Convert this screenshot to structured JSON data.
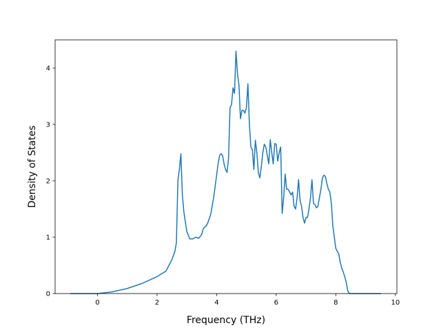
{
  "chart_data": {
    "type": "line",
    "title": "",
    "xlabel": "Frequency (THz)",
    "ylabel": "Density of States",
    "xlim": [
      -1.42,
      10.05
    ],
    "ylim": [
      0,
      4.5
    ],
    "grid": false,
    "legend": "none",
    "xticks": [
      0,
      2,
      4,
      6,
      8,
      10
    ],
    "xtick_labels": [
      "0",
      "2",
      "4",
      "6",
      "8",
      "10"
    ],
    "yticks": [
      0,
      1,
      2,
      3,
      4
    ],
    "ytick_labels": [
      "0",
      "1",
      "2",
      "3",
      "4"
    ],
    "series": [
      {
        "color": "#1f77b4",
        "x": [
          -0.9,
          -0.5,
          0.0,
          0.5,
          1.0,
          1.5,
          2.0,
          2.3,
          2.5,
          2.6,
          2.65,
          2.7,
          2.75,
          2.8,
          2.85,
          2.9,
          3.0,
          3.1,
          3.2,
          3.3,
          3.4,
          3.5,
          3.55,
          3.6,
          3.65,
          3.7,
          3.8,
          3.9,
          4.0,
          4.05,
          4.1,
          4.15,
          4.2,
          4.25,
          4.3,
          4.35,
          4.4,
          4.45,
          4.5,
          4.55,
          4.6,
          4.65,
          4.7,
          4.75,
          4.8,
          4.85,
          4.9,
          4.95,
          5.0,
          5.05,
          5.1,
          5.15,
          5.2,
          5.25,
          5.3,
          5.35,
          5.4,
          5.45,
          5.5,
          5.55,
          5.6,
          5.65,
          5.7,
          5.75,
          5.8,
          5.85,
          5.9,
          5.95,
          6.0,
          6.05,
          6.1,
          6.15,
          6.2,
          6.25,
          6.3,
          6.35,
          6.4,
          6.45,
          6.5,
          6.55,
          6.6,
          6.65,
          6.7,
          6.75,
          6.8,
          6.85,
          6.9,
          6.95,
          7.0,
          7.05,
          7.1,
          7.15,
          7.2,
          7.25,
          7.3,
          7.35,
          7.4,
          7.45,
          7.5,
          7.55,
          7.6,
          7.65,
          7.7,
          7.75,
          7.8,
          7.85,
          7.9,
          7.95,
          8.0,
          8.05,
          8.1,
          8.15,
          8.2,
          8.25,
          8.3,
          8.35,
          8.4,
          8.45,
          8.5,
          8.55,
          8.6,
          8.65,
          8.7,
          8.8,
          9.0,
          9.5
        ],
        "y": [
          0.0,
          0.0,
          0.0,
          0.03,
          0.09,
          0.18,
          0.3,
          0.4,
          0.6,
          0.75,
          0.9,
          2.0,
          2.2,
          2.48,
          1.75,
          1.45,
          1.1,
          0.97,
          0.97,
          1.0,
          0.98,
          1.05,
          1.15,
          1.18,
          1.2,
          1.25,
          1.4,
          1.7,
          2.1,
          2.3,
          2.45,
          2.48,
          2.45,
          2.3,
          2.2,
          2.15,
          2.4,
          3.3,
          3.35,
          3.65,
          3.55,
          4.3,
          3.9,
          3.7,
          3.1,
          3.25,
          3.25,
          3.2,
          3.3,
          3.72,
          3.0,
          2.6,
          2.55,
          2.2,
          2.72,
          2.5,
          2.15,
          2.05,
          2.25,
          2.5,
          2.65,
          2.6,
          2.45,
          2.3,
          2.73,
          2.5,
          2.3,
          2.66,
          2.65,
          2.35,
          2.5,
          2.6,
          1.42,
          1.7,
          2.12,
          1.85,
          1.85,
          1.8,
          1.75,
          1.8,
          1.55,
          1.5,
          1.7,
          2.02,
          1.65,
          1.55,
          1.35,
          1.25,
          1.35,
          1.35,
          1.5,
          1.7,
          2.02,
          1.6,
          1.58,
          1.52,
          1.55,
          1.7,
          1.85,
          2.05,
          2.1,
          2.08,
          1.95,
          1.85,
          1.8,
          1.6,
          1.2,
          1.0,
          0.8,
          0.75,
          0.7,
          0.55,
          0.45,
          0.38,
          0.3,
          0.2,
          0.05,
          0.0,
          0.0,
          0.0,
          0.0,
          0.0,
          0.0,
          0.0,
          0.0,
          0.0
        ]
      }
    ]
  }
}
